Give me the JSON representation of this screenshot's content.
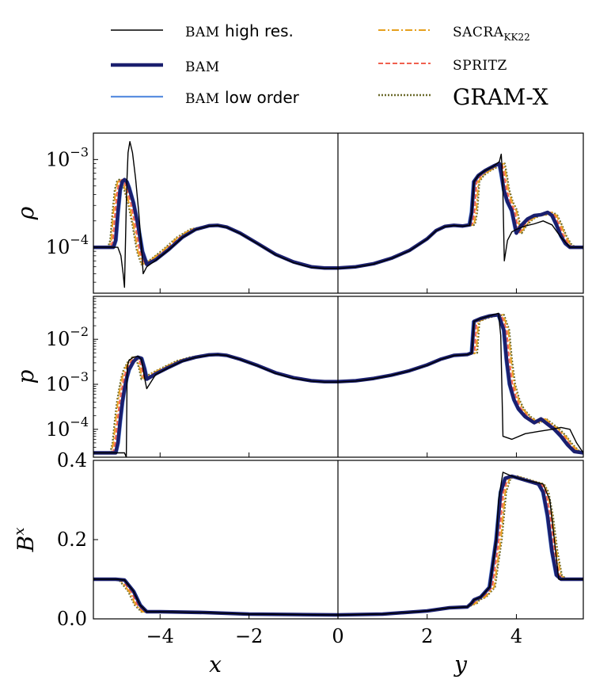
{
  "legend": {
    "entries": [
      {
        "key": "bam_high",
        "label_sc": "BAM",
        "label_rest": " high res.",
        "color": "#000000",
        "width": 1.4,
        "dash": ""
      },
      {
        "key": "bam",
        "label_sc": "BAM",
        "label_rest": "",
        "color": "#1a1f6e",
        "width": 4.5,
        "dash": ""
      },
      {
        "key": "bam_low",
        "label_sc": "BAM",
        "label_rest": " low order",
        "color": "#5b8fe0",
        "width": 2.2,
        "dash": ""
      },
      {
        "key": "sacra",
        "label_sc": "SACRA",
        "label_sub": "KK22",
        "color": "#e6a01e",
        "width": 2.0,
        "dash": "9,3,2,3"
      },
      {
        "key": "spritz",
        "label_sc": "SPRITZ",
        "label_rest": "",
        "color": "#f0604f",
        "width": 2.0,
        "dash": "6,3"
      },
      {
        "key": "gramx",
        "label_big": "GRAM-X",
        "color": "#6b6a2c",
        "width": 2.4,
        "dash": "2,2"
      }
    ]
  },
  "chart_data": {
    "type": "line",
    "x_left": {
      "label": "x",
      "range": [
        -5.5,
        0
      ],
      "ticks": [
        -4,
        -2,
        0
      ],
      "tick_labels": [
        "−4",
        "−2",
        "0"
      ]
    },
    "x_right": {
      "label": "y",
      "range": [
        0,
        5.5
      ],
      "ticks": [
        2,
        4
      ],
      "tick_labels": [
        "2",
        "4"
      ]
    },
    "panels": [
      {
        "name": "rho",
        "ylabel": "ρ",
        "scale": "log",
        "ylim": [
          3e-05,
          0.002
        ],
        "ticks": [
          0.001,
          0.0001
        ],
        "tick_labels": [
          "10",
          "10"
        ],
        "tick_exp": [
          "−3",
          "−4"
        ],
        "minor_ticks": [
          4e-05,
          5e-05,
          6e-05,
          7e-05,
          8e-05,
          9e-05,
          0.0002,
          0.0003,
          0.0004,
          0.0005,
          0.0006,
          0.0007,
          0.0008,
          0.0009
        ],
        "left": {
          "x": [
            -5.5,
            -5.2,
            -5.05,
            -5.0,
            -4.95,
            -4.9,
            -4.85,
            -4.8,
            -4.75,
            -4.7,
            -4.6,
            -4.5,
            -4.4,
            -4.3,
            -4.1,
            -3.8,
            -3.5,
            -3.2,
            -2.9,
            -2.7,
            -2.5,
            -2.2,
            -1.8,
            -1.4,
            -1.0,
            -0.6,
            -0.3,
            0.0
          ],
          "y": [
            0.0001,
            0.0001,
            0.0001,
            0.00012,
            0.00025,
            0.00045,
            0.00056,
            0.00059,
            0.00056,
            0.00048,
            0.00032,
            0.00018,
            9e-05,
            6.4e-05,
            7.2e-05,
            9.5e-05,
            0.00013,
            0.00016,
            0.000176,
            0.000178,
            0.00017,
            0.000145,
            0.00011,
            8.3e-05,
            6.8e-05,
            6e-05,
            5.8e-05,
            5.8e-05
          ]
        },
        "right": {
          "x": [
            0.0,
            0.4,
            0.8,
            1.2,
            1.6,
            2.0,
            2.2,
            2.4,
            2.6,
            2.8,
            2.95,
            3.0,
            3.05,
            3.15,
            3.3,
            3.5,
            3.62,
            3.66,
            3.72,
            3.8,
            3.9,
            4.0,
            4.1,
            4.25,
            4.4,
            4.55,
            4.7,
            4.8,
            4.9,
            5.0,
            5.1,
            5.2,
            5.35,
            5.5
          ],
          "y": [
            5.8e-05,
            6e-05,
            6.5e-05,
            7.5e-05,
            9.2e-05,
            0.000125,
            0.000155,
            0.000173,
            0.000178,
            0.000175,
            0.00018,
            0.00025,
            0.00056,
            0.00066,
            0.00075,
            0.00085,
            0.0009,
            0.0007,
            0.00045,
            0.00033,
            0.00026,
            0.000145,
            0.000175,
            0.00021,
            0.00023,
            0.000235,
            0.00025,
            0.00023,
            0.00018,
            0.000135,
            0.00011,
            0.0001,
            0.0001,
            0.0001
          ]
        }
      },
      {
        "name": "p",
        "ylabel": "p",
        "scale": "log",
        "ylim": [
          2.4e-05,
          0.09
        ],
        "ticks": [
          0.01,
          0.001,
          0.0001
        ],
        "tick_labels": [
          "10",
          "10",
          "10"
        ],
        "tick_exp": [
          "−2",
          "−3",
          "−4"
        ],
        "minor_ticks": [
          3e-05,
          4e-05,
          5e-05,
          6e-05,
          7e-05,
          8e-05,
          9e-05,
          0.0002,
          0.0003,
          0.0004,
          0.0005,
          0.0006,
          0.0007,
          0.0008,
          0.0009,
          0.002,
          0.003,
          0.004,
          0.005,
          0.006,
          0.007,
          0.008,
          0.009,
          0.02,
          0.03,
          0.04,
          0.05,
          0.06,
          0.07,
          0.08
        ],
        "left": {
          "x": [
            -5.5,
            -5.2,
            -5.0,
            -4.95,
            -4.9,
            -4.85,
            -4.8,
            -4.75,
            -4.7,
            -4.6,
            -4.5,
            -4.42,
            -4.35,
            -4.3,
            -4.1,
            -3.8,
            -3.5,
            -3.2,
            -2.9,
            -2.7,
            -2.5,
            -2.2,
            -1.8,
            -1.4,
            -1.0,
            -0.6,
            -0.3,
            0.0
          ],
          "y": [
            3e-05,
            3e-05,
            3e-05,
            5e-05,
            0.00015,
            0.0004,
            0.0008,
            0.0014,
            0.0021,
            0.0032,
            0.004,
            0.0038,
            0.0022,
            0.0013,
            0.0017,
            0.0024,
            0.0033,
            0.004,
            0.0045,
            0.0046,
            0.0044,
            0.0036,
            0.0026,
            0.0018,
            0.0014,
            0.0012,
            0.00115,
            0.00115
          ]
        },
        "right": {
          "x": [
            0.0,
            0.4,
            0.8,
            1.2,
            1.6,
            2.0,
            2.3,
            2.6,
            2.9,
            3.0,
            3.05,
            3.2,
            3.4,
            3.6,
            3.72,
            3.78,
            3.85,
            3.95,
            4.05,
            4.2,
            4.4,
            4.55,
            4.7,
            4.85,
            5.0,
            5.15,
            5.3,
            5.5
          ],
          "y": [
            0.00115,
            0.0012,
            0.00135,
            0.0016,
            0.002,
            0.0027,
            0.0036,
            0.0044,
            0.0046,
            0.005,
            0.025,
            0.029,
            0.033,
            0.035,
            0.016,
            0.0035,
            0.001,
            0.00045,
            0.00028,
            0.00019,
            0.00014,
            0.00017,
            0.00013,
            0.0001,
            7e-05,
            4.5e-05,
            3.2e-05,
            3e-05
          ]
        }
      },
      {
        "name": "Bx",
        "ylabel": "B",
        "ylabel_sup": "x",
        "scale": "linear",
        "ylim": [
          0.0,
          0.4
        ],
        "ticks": [
          0.0,
          0.2,
          0.4
        ],
        "tick_labels": [
          "0.0",
          "0.2",
          "0.4"
        ],
        "tick_exp": [
          "",
          "",
          ""
        ],
        "minor_ticks": [],
        "left": {
          "x": [
            -5.5,
            -5.0,
            -4.8,
            -4.6,
            -4.45,
            -4.3,
            -4.0,
            -3.0,
            -2.0,
            -1.0,
            0.0
          ],
          "y": [
            0.1,
            0.1,
            0.098,
            0.07,
            0.035,
            0.018,
            0.018,
            0.016,
            0.012,
            0.011,
            0.01
          ]
        },
        "right": {
          "x": [
            0.0,
            1.0,
            2.0,
            2.5,
            2.9,
            3.0,
            3.05,
            3.2,
            3.4,
            3.55,
            3.65,
            3.75,
            3.9,
            4.2,
            4.5,
            4.6,
            4.7,
            4.8,
            4.9,
            5.0,
            5.2,
            5.5
          ],
          "y": [
            0.01,
            0.012,
            0.02,
            0.028,
            0.03,
            0.04,
            0.048,
            0.055,
            0.08,
            0.2,
            0.32,
            0.355,
            0.36,
            0.35,
            0.34,
            0.32,
            0.26,
            0.17,
            0.11,
            0.1,
            0.1,
            0.1
          ]
        }
      }
    ],
    "series_variants": {
      "bam_high": {
        "rho_left_x": [
          -5.5,
          -4.95,
          -4.88,
          -4.83,
          -4.8,
          -4.75,
          -4.72,
          -4.68,
          -4.62,
          -4.55,
          -4.48,
          -4.42,
          -4.38,
          -4.3,
          -4.1,
          -3.8,
          -3.5,
          -3.2,
          -2.9,
          -2.7,
          -2.5,
          -2.2,
          -1.8,
          -1.4,
          -1.0,
          -0.6,
          -0.3,
          0.0
        ],
        "rho_left_y": [
          0.0001,
          0.0001,
          8e-05,
          5e-05,
          3.5e-05,
          0.0005,
          0.0012,
          0.0016,
          0.0012,
          0.0006,
          0.00025,
          0.0001,
          5e-05,
          6e-05,
          7.1e-05,
          9.4e-05,
          0.000129,
          0.000159,
          0.000175,
          0.000177,
          0.000169,
          0.000144,
          0.000109,
          8.2e-05,
          6.7e-05,
          5.9e-05,
          5.75e-05,
          5.75e-05
        ],
        "rho_right_x": [
          0.0,
          0.4,
          0.8,
          1.2,
          1.6,
          2.0,
          2.2,
          2.4,
          2.6,
          2.8,
          2.95,
          3.0,
          3.05,
          3.15,
          3.3,
          3.5,
          3.62,
          3.66,
          3.69,
          3.73,
          3.8,
          3.9,
          4.0,
          4.2,
          4.4,
          4.6,
          4.8,
          5.0,
          5.2,
          5.5
        ],
        "rho_right_y": [
          5.75e-05,
          5.95e-05,
          6.45e-05,
          7.45e-05,
          9.1e-05,
          0.000124,
          0.000154,
          0.000172,
          0.000177,
          0.000174,
          0.000178,
          0.00025,
          0.00056,
          0.00066,
          0.00075,
          0.00085,
          0.00095,
          0.00115,
          0.00065,
          7e-05,
          0.00012,
          0.00015,
          0.00016,
          0.000175,
          0.000185,
          0.0002,
          0.00018,
          0.00013,
          0.0001,
          0.0001
        ],
        "p_left_x": [
          -5.5,
          -4.8,
          -4.76,
          -4.74,
          -4.7,
          -4.6,
          -4.5,
          -4.42,
          -4.35,
          -4.3,
          -4.1,
          -3.8,
          -3.5,
          -3.2,
          -2.9,
          -2.7,
          -2.5,
          -2.2,
          -1.8,
          -1.4,
          -1.0,
          -0.6,
          -0.3,
          0.0
        ],
        "p_left_y": [
          3e-05,
          3e-05,
          2.4e-05,
          0.0024,
          0.0034,
          0.004,
          0.0042,
          0.0036,
          0.0014,
          0.0008,
          0.00165,
          0.00235,
          0.00325,
          0.00395,
          0.00445,
          0.00455,
          0.00435,
          0.00355,
          0.00255,
          0.00175,
          0.00135,
          0.00118,
          0.00112,
          0.00112
        ],
        "p_right_x": [
          0.0,
          0.4,
          0.8,
          1.2,
          1.6,
          2.0,
          2.3,
          2.6,
          2.9,
          3.0,
          3.05,
          3.2,
          3.4,
          3.6,
          3.65,
          3.7,
          3.9,
          4.2,
          4.5,
          4.8,
          5.0,
          5.2,
          5.35,
          5.5
        ],
        "p_right_y": [
          0.00112,
          0.00118,
          0.00133,
          0.00158,
          0.00198,
          0.00265,
          0.00355,
          0.00435,
          0.00455,
          0.005,
          0.025,
          0.029,
          0.033,
          0.038,
          0.012,
          7e-05,
          6e-05,
          8e-05,
          9e-05,
          0.0001,
          0.00011,
          0.0001,
          5e-05,
          3e-05
        ],
        "Bx_right_x": [
          0.0,
          1.0,
          2.0,
          2.5,
          2.9,
          3.0,
          3.05,
          3.2,
          3.4,
          3.55,
          3.6,
          3.7,
          3.9,
          4.2,
          4.6,
          4.75,
          4.85,
          4.95,
          5.1,
          5.5
        ],
        "Bx_right_y": [
          0.01,
          0.012,
          0.02,
          0.028,
          0.03,
          0.04,
          0.048,
          0.055,
          0.08,
          0.2,
          0.3,
          0.37,
          0.36,
          0.35,
          0.34,
          0.3,
          0.2,
          0.1,
          0.1,
          0.1
        ]
      },
      "shift_dx": {
        "bam_high": 0,
        "bam": 0,
        "bam_low": -0.03,
        "sacra": 0.1,
        "spritz": 0.06,
        "gramx": 0.12
      }
    }
  }
}
